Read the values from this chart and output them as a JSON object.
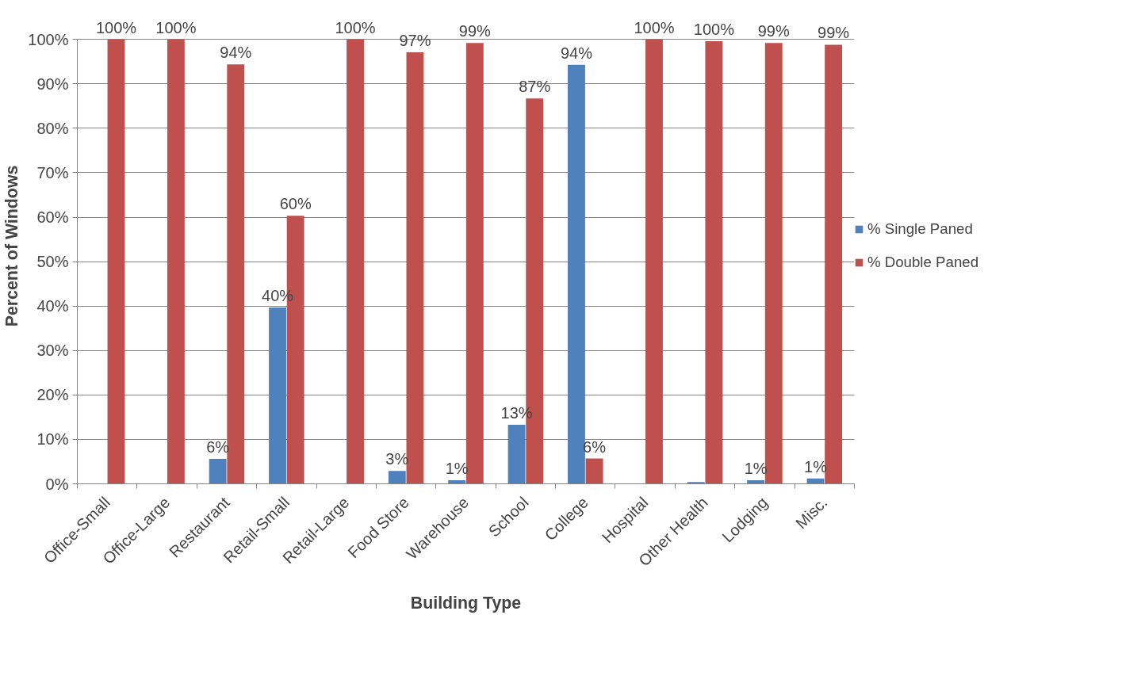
{
  "chart_data": {
    "type": "bar",
    "xlabel": "Building Type",
    "ylabel": "Percent of Windows",
    "categories": [
      "Office-Small",
      "Office-Large",
      "Restaurant",
      "Retail-Small",
      "Retail-Large",
      "Food Store",
      "Warehouse",
      "School",
      "College",
      "Hospital",
      "Other Health",
      "Lodging",
      "Misc."
    ],
    "series": [
      {
        "name": "% Single Paned",
        "color": "#4f81bd",
        "values": [
          null,
          null,
          5.6,
          39.7,
          null,
          2.9,
          0.8,
          13.3,
          94.3,
          null,
          0.4,
          0.8,
          1.2
        ],
        "value_labels": [
          null,
          null,
          "6%",
          "40%",
          null,
          "3%",
          "1%",
          "13%",
          "94%",
          null,
          null,
          "1%",
          "1%"
        ]
      },
      {
        "name": "% Double Paned",
        "color": "#c0504d",
        "values": [
          100,
          100,
          94.4,
          60.3,
          100,
          97.1,
          99.2,
          86.7,
          5.7,
          100,
          99.6,
          99.2,
          98.8
        ],
        "value_labels": [
          "100%",
          "100%",
          "94%",
          "60%",
          "100%",
          "97%",
          "99%",
          "87%",
          "6%",
          "100%",
          "100%",
          "99%",
          "99%"
        ]
      }
    ],
    "ylim": [
      0,
      100
    ],
    "yticks": [
      {
        "value": 0,
        "label": "0%"
      },
      {
        "value": 10,
        "label": "10%"
      },
      {
        "value": 20,
        "label": "20%"
      },
      {
        "value": 30,
        "label": "30%"
      },
      {
        "value": 40,
        "label": "40%"
      },
      {
        "value": 50,
        "label": "50%"
      },
      {
        "value": 60,
        "label": "60%"
      },
      {
        "value": 70,
        "label": "70%"
      },
      {
        "value": 80,
        "label": "80%"
      },
      {
        "value": 90,
        "label": "90%"
      },
      {
        "value": 100,
        "label": "100%"
      }
    ],
    "grid": "y",
    "legend": "right"
  }
}
